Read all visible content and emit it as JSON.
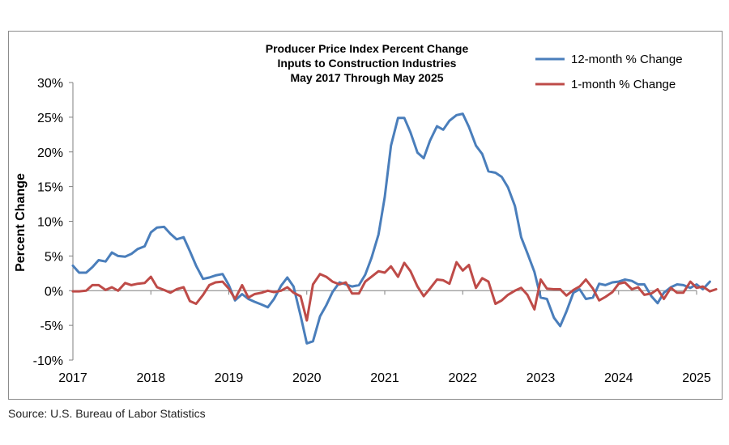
{
  "chart_data": {
    "type": "line",
    "title": [
      "Producer Price Index Percent Change",
      "Inputs to Construction Industries",
      "May 2017 Through May 2025"
    ],
    "ylabel": "Percent Change",
    "xlabel": "",
    "x_ticks": [
      "2017",
      "2018",
      "2019",
      "2020",
      "2021",
      "2022",
      "2023",
      "2024",
      "2025"
    ],
    "y_ticks": [
      "30%",
      "25%",
      "20%",
      "15%",
      "10%",
      "5%",
      "0%",
      "-5%",
      "-10%"
    ],
    "ylim": [
      -10,
      30
    ],
    "xlim": [
      2017.0,
      2025.0
    ],
    "grid": false,
    "legend_position": "top-right",
    "series": [
      {
        "name": "12-month % Change",
        "color": "#4a7ebb",
        "points": [
          [
            2017.0,
            3.6
          ],
          [
            2017.08,
            2.6
          ],
          [
            2017.17,
            2.6
          ],
          [
            2017.25,
            3.4
          ],
          [
            2017.33,
            4.4
          ],
          [
            2017.42,
            4.2
          ],
          [
            2017.5,
            5.5
          ],
          [
            2017.58,
            5.0
          ],
          [
            2017.67,
            4.9
          ],
          [
            2017.75,
            5.3
          ],
          [
            2017.83,
            6.0
          ],
          [
            2017.92,
            6.4
          ],
          [
            2018.0,
            8.4
          ],
          [
            2018.08,
            9.1
          ],
          [
            2018.17,
            9.2
          ],
          [
            2018.25,
            8.2
          ],
          [
            2018.33,
            7.4
          ],
          [
            2018.42,
            7.7
          ],
          [
            2018.5,
            5.7
          ],
          [
            2018.58,
            3.6
          ],
          [
            2018.67,
            1.7
          ],
          [
            2018.75,
            1.9
          ],
          [
            2018.83,
            2.2
          ],
          [
            2018.92,
            2.4
          ],
          [
            2019.0,
            0.8
          ],
          [
            2019.08,
            -1.4
          ],
          [
            2019.17,
            -0.5
          ],
          [
            2019.25,
            -1.2
          ],
          [
            2019.33,
            -1.6
          ],
          [
            2019.42,
            -2.0
          ],
          [
            2019.5,
            -2.4
          ],
          [
            2019.58,
            -1.2
          ],
          [
            2019.67,
            0.7
          ],
          [
            2019.75,
            1.9
          ],
          [
            2019.83,
            0.6
          ],
          [
            2019.92,
            -3.6
          ],
          [
            2020.0,
            -7.6
          ],
          [
            2020.08,
            -7.3
          ],
          [
            2020.17,
            -3.7
          ],
          [
            2020.25,
            -2.1
          ],
          [
            2020.33,
            -0.2
          ],
          [
            2020.42,
            1.2
          ],
          [
            2020.5,
            0.9
          ],
          [
            2020.58,
            0.6
          ],
          [
            2020.67,
            0.8
          ],
          [
            2020.75,
            2.3
          ],
          [
            2020.83,
            4.7
          ],
          [
            2020.92,
            8.1
          ],
          [
            2021.0,
            13.5
          ],
          [
            2021.08,
            20.9
          ],
          [
            2021.17,
            24.9
          ],
          [
            2021.25,
            24.9
          ],
          [
            2021.33,
            22.8
          ],
          [
            2021.42,
            19.9
          ],
          [
            2021.5,
            19.1
          ],
          [
            2021.58,
            21.6
          ],
          [
            2021.67,
            23.7
          ],
          [
            2021.75,
            23.2
          ],
          [
            2021.83,
            24.5
          ],
          [
            2021.92,
            25.3
          ],
          [
            2022.0,
            25.5
          ],
          [
            2022.08,
            23.6
          ],
          [
            2022.17,
            20.9
          ],
          [
            2022.25,
            19.7
          ],
          [
            2022.33,
            17.2
          ],
          [
            2022.42,
            17.0
          ],
          [
            2022.5,
            16.4
          ],
          [
            2022.58,
            14.9
          ],
          [
            2022.67,
            12.2
          ],
          [
            2022.75,
            7.7
          ],
          [
            2022.83,
            5.4
          ],
          [
            2022.92,
            2.7
          ],
          [
            2023.0,
            -1.0
          ],
          [
            2023.08,
            -1.2
          ],
          [
            2023.17,
            -3.9
          ],
          [
            2023.25,
            -5.1
          ],
          [
            2023.33,
            -3.0
          ],
          [
            2023.42,
            -0.3
          ],
          [
            2023.5,
            0.2
          ],
          [
            2023.58,
            -1.2
          ],
          [
            2023.67,
            -1.0
          ],
          [
            2023.75,
            1.0
          ],
          [
            2023.83,
            0.8
          ],
          [
            2023.92,
            1.2
          ],
          [
            2024.0,
            1.3
          ],
          [
            2024.08,
            1.6
          ],
          [
            2024.17,
            1.4
          ],
          [
            2024.25,
            0.9
          ],
          [
            2024.33,
            0.9
          ],
          [
            2024.42,
            -0.8
          ],
          [
            2024.5,
            -1.8
          ],
          [
            2024.58,
            -0.3
          ],
          [
            2024.67,
            0.5
          ],
          [
            2024.75,
            0.9
          ],
          [
            2024.83,
            0.8
          ],
          [
            2024.92,
            0.4
          ],
          [
            2025.0,
            0.9
          ],
          [
            2025.08,
            0.2
          ],
          [
            2025.17,
            1.3
          ]
        ]
      },
      {
        "name": "1-month % Change",
        "color": "#be4b48",
        "points": [
          [
            2017.0,
            -0.1
          ],
          [
            2017.08,
            -0.1
          ],
          [
            2017.17,
            0.0
          ],
          [
            2017.25,
            0.8
          ],
          [
            2017.33,
            0.8
          ],
          [
            2017.42,
            0.1
          ],
          [
            2017.5,
            0.5
          ],
          [
            2017.58,
            0.0
          ],
          [
            2017.67,
            1.1
          ],
          [
            2017.75,
            0.8
          ],
          [
            2017.83,
            1.0
          ],
          [
            2017.92,
            1.1
          ],
          [
            2018.0,
            2.0
          ],
          [
            2018.08,
            0.5
          ],
          [
            2018.17,
            0.1
          ],
          [
            2018.25,
            -0.3
          ],
          [
            2018.33,
            0.2
          ],
          [
            2018.42,
            0.5
          ],
          [
            2018.5,
            -1.5
          ],
          [
            2018.58,
            -1.9
          ],
          [
            2018.67,
            -0.6
          ],
          [
            2018.75,
            0.8
          ],
          [
            2018.83,
            1.2
          ],
          [
            2018.92,
            1.3
          ],
          [
            2019.0,
            0.3
          ],
          [
            2019.08,
            -1.2
          ],
          [
            2019.17,
            0.8
          ],
          [
            2019.25,
            -1.0
          ],
          [
            2019.33,
            -0.5
          ],
          [
            2019.42,
            -0.3
          ],
          [
            2019.5,
            0.0
          ],
          [
            2019.58,
            -0.2
          ],
          [
            2019.67,
            0.0
          ],
          [
            2019.75,
            0.5
          ],
          [
            2019.83,
            -0.3
          ],
          [
            2019.92,
            -0.8
          ],
          [
            2020.0,
            -4.3
          ],
          [
            2020.08,
            0.9
          ],
          [
            2020.17,
            2.4
          ],
          [
            2020.25,
            2.0
          ],
          [
            2020.33,
            1.3
          ],
          [
            2020.42,
            0.9
          ],
          [
            2020.5,
            1.2
          ],
          [
            2020.58,
            -0.4
          ],
          [
            2020.67,
            -0.4
          ],
          [
            2020.75,
            1.3
          ],
          [
            2020.83,
            2.0
          ],
          [
            2020.92,
            2.8
          ],
          [
            2021.0,
            2.6
          ],
          [
            2021.08,
            3.5
          ],
          [
            2021.17,
            2.0
          ],
          [
            2021.25,
            4.0
          ],
          [
            2021.33,
            2.8
          ],
          [
            2021.42,
            0.6
          ],
          [
            2021.5,
            -0.8
          ],
          [
            2021.58,
            0.3
          ],
          [
            2021.67,
            1.6
          ],
          [
            2021.75,
            1.5
          ],
          [
            2021.83,
            1.0
          ],
          [
            2021.92,
            4.1
          ],
          [
            2022.0,
            2.9
          ],
          [
            2022.08,
            3.7
          ],
          [
            2022.17,
            0.4
          ],
          [
            2022.25,
            1.8
          ],
          [
            2022.33,
            1.3
          ],
          [
            2022.42,
            -1.9
          ],
          [
            2022.5,
            -1.4
          ],
          [
            2022.58,
            -0.6
          ],
          [
            2022.67,
            0.0
          ],
          [
            2022.75,
            0.4
          ],
          [
            2022.83,
            -0.6
          ],
          [
            2022.92,
            -2.7
          ],
          [
            2023.0,
            1.6
          ],
          [
            2023.08,
            0.3
          ],
          [
            2023.17,
            0.2
          ],
          [
            2023.25,
            0.2
          ],
          [
            2023.33,
            -0.7
          ],
          [
            2023.42,
            0.1
          ],
          [
            2023.5,
            0.6
          ],
          [
            2023.58,
            1.6
          ],
          [
            2023.67,
            0.3
          ],
          [
            2023.75,
            -1.4
          ],
          [
            2023.83,
            -0.9
          ],
          [
            2023.92,
            -0.2
          ],
          [
            2024.0,
            1.0
          ],
          [
            2024.08,
            1.2
          ],
          [
            2024.17,
            0.2
          ],
          [
            2024.25,
            0.5
          ],
          [
            2024.33,
            -0.6
          ],
          [
            2024.42,
            -0.4
          ],
          [
            2024.5,
            0.2
          ],
          [
            2024.58,
            -1.2
          ],
          [
            2024.67,
            0.4
          ],
          [
            2024.75,
            -0.3
          ],
          [
            2024.83,
            -0.3
          ],
          [
            2024.92,
            1.3
          ],
          [
            2025.0,
            0.4
          ],
          [
            2025.08,
            0.6
          ],
          [
            2025.17,
            -0.1
          ],
          [
            2025.25,
            0.2
          ]
        ]
      }
    ]
  },
  "footer": {
    "source": "Source: U.S. Bureau of Labor Statistics"
  }
}
